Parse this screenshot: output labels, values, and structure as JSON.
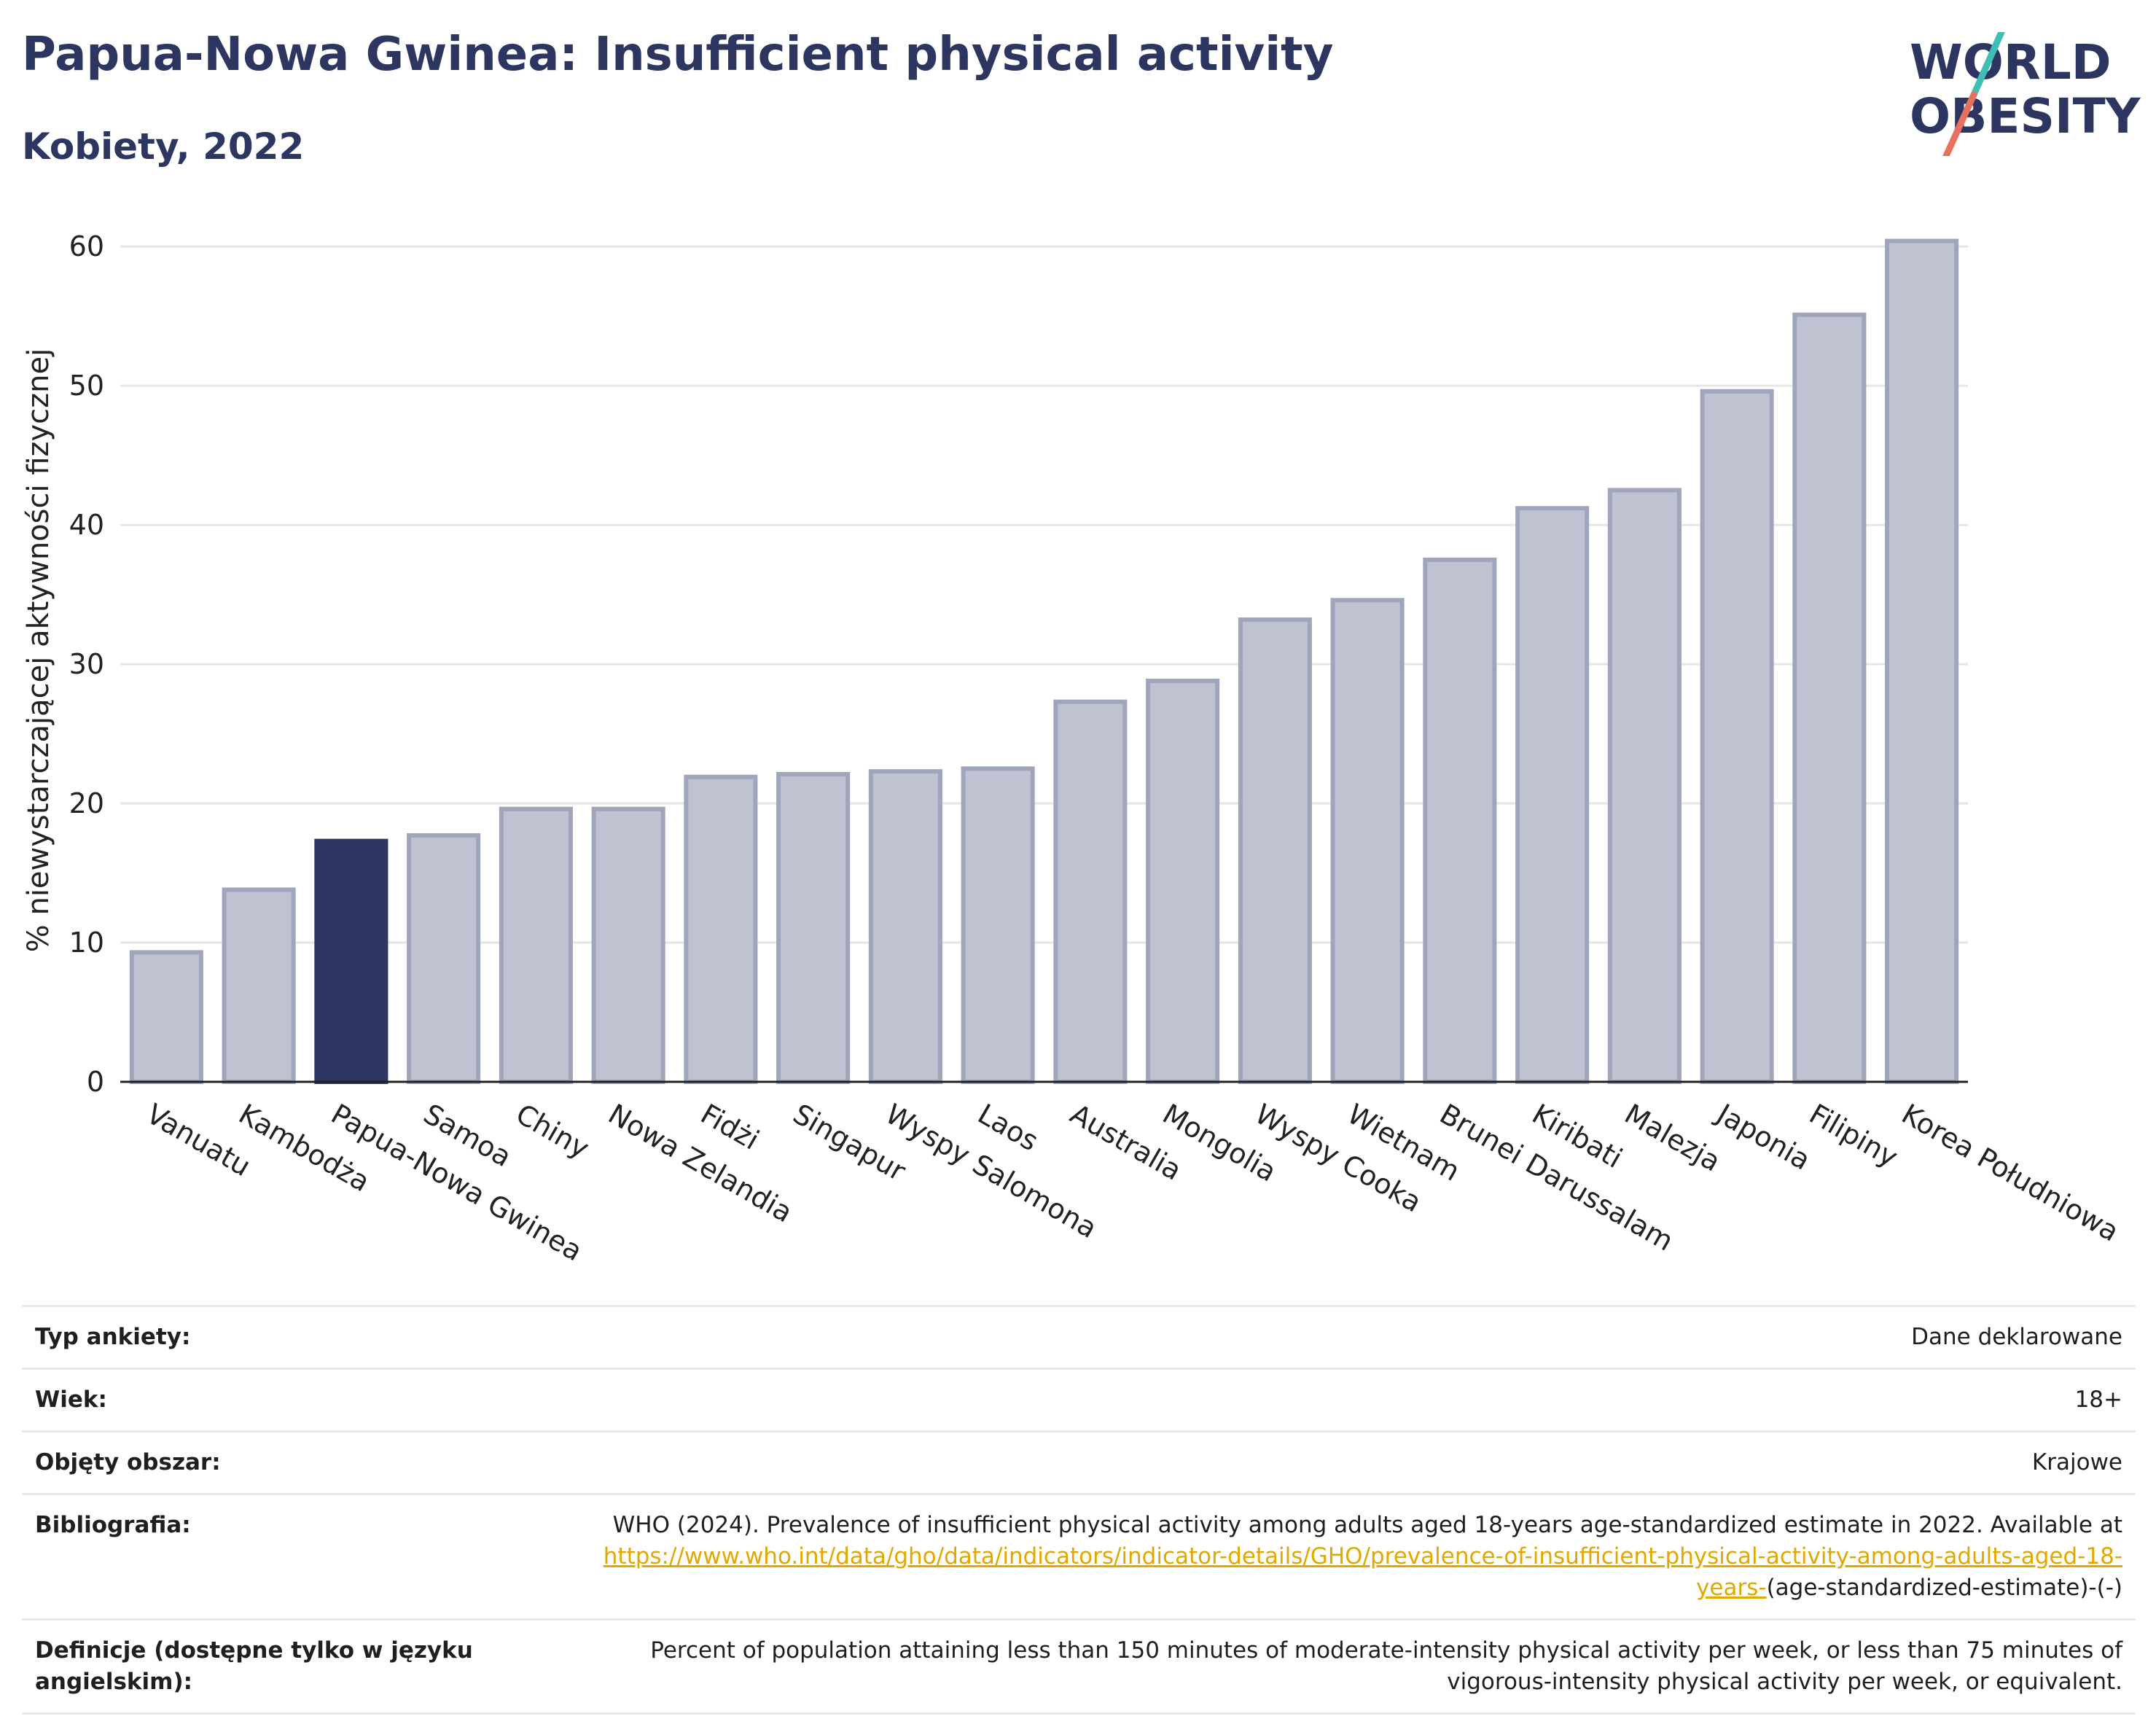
{
  "header": {
    "title": "Papua-Nowa Gwinea: Insufficient physical activity",
    "subtitle": "Kobiety, 2022",
    "logo_line1": "WORLD",
    "logo_line2": "OBESITY"
  },
  "colors": {
    "highlight": "#2d3561",
    "bar": "#bfc3d1",
    "bar_edge": "#9fa5bb",
    "title": "#2d3561",
    "logo_slash_top": "#3fbfb3",
    "logo_slash_bottom": "#e8705e",
    "link": "#e0a800"
  },
  "chart_data": {
    "type": "bar",
    "title": "Papua-Nowa Gwinea: Insufficient physical activity",
    "ylabel": "% niewystarczającej aktywności fizycznej",
    "xlabel": "",
    "ylim": [
      0,
      62
    ],
    "yticks": [
      0,
      10,
      20,
      30,
      40,
      50,
      60
    ],
    "grid": true,
    "highlight": "Papua-Nowa Gwinea",
    "categories": [
      "Vanuatu",
      "Kambodża",
      "Papua-Nowa Gwinea",
      "Samoa",
      "Chiny",
      "Nowa Zelandia",
      "Fidżi",
      "Singapur",
      "Wyspy Salomona",
      "Laos",
      "Australia",
      "Mongolia",
      "Wyspy Cooka",
      "Wietnam",
      "Brunei Darussalam",
      "Kiribati",
      "Malezja",
      "Japonia",
      "Filipiny",
      "Korea Południowa"
    ],
    "values": [
      9.3,
      13.8,
      17.3,
      17.7,
      19.6,
      19.6,
      21.9,
      22.1,
      22.3,
      22.5,
      27.3,
      28.8,
      33.2,
      34.6,
      37.5,
      41.2,
      42.5,
      49.6,
      55.1,
      60.4
    ]
  },
  "info": {
    "rows": [
      {
        "key": "Typ ankiety:",
        "value": "Dane deklarowane"
      },
      {
        "key": "Wiek:",
        "value": "18+"
      },
      {
        "key": "Objęty obszar:",
        "value": "Krajowe"
      }
    ],
    "bibliography": {
      "key": "Bibliografia:",
      "text": "WHO (2024). Prevalence of insufficient physical activity among adults aged 18-years age-standardized estimate in 2022. Available at",
      "link": "https://www.who.int/data/gho/data/indicators/indicator-details/GHO/prevalence-of-insufficient-physical-activity-among-adults-aged-18-years-",
      "suffix": "(age-standardized-estimate)-(-)"
    },
    "definition": {
      "key": "Definicje (dostępne tylko w języku angielskim):",
      "value": "Percent of population attaining less than 150 minutes of moderate-intensity physical activity per week, or less than 75 minutes of vigorous-intensity physical activity per week, or equivalent."
    }
  }
}
